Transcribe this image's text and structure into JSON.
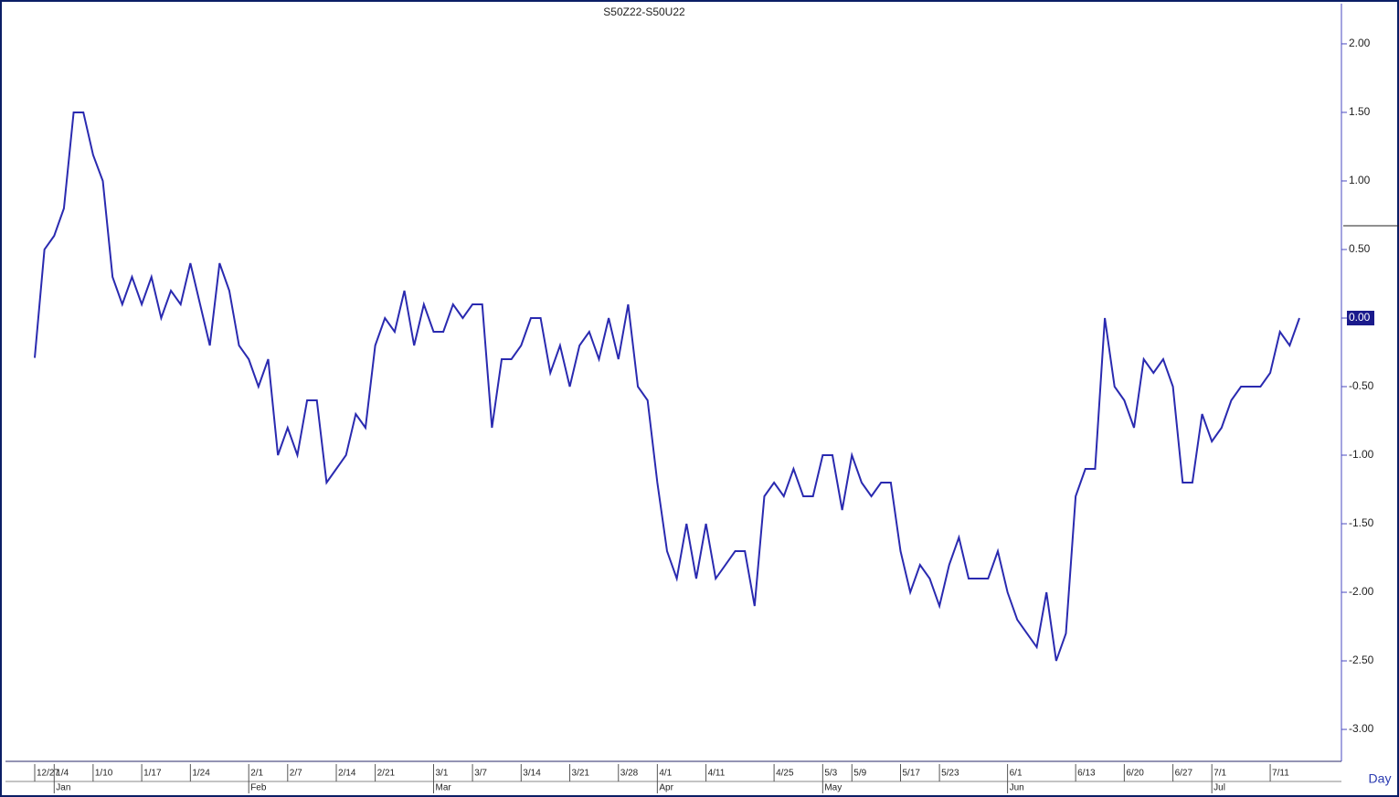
{
  "chart_data": {
    "type": "line",
    "title": "S50Z22-S50U22",
    "period": "Day",
    "categories": [
      "12/27",
      null,
      "1/4",
      null,
      null,
      null,
      "1/10",
      null,
      null,
      null,
      null,
      "1/17",
      null,
      null,
      null,
      null,
      "1/24",
      null,
      null,
      null,
      null,
      null,
      "2/1",
      null,
      null,
      null,
      "2/7",
      null,
      null,
      null,
      null,
      "2/14",
      null,
      null,
      null,
      "2/21",
      null,
      null,
      null,
      null,
      null,
      "3/1",
      null,
      null,
      null,
      "3/7",
      null,
      null,
      null,
      null,
      "3/14",
      null,
      null,
      null,
      null,
      "3/21",
      null,
      null,
      null,
      null,
      "3/28",
      null,
      null,
      null,
      "4/1",
      null,
      null,
      null,
      null,
      "4/11",
      null,
      null,
      null,
      null,
      null,
      null,
      "4/25",
      null,
      null,
      null,
      null,
      "5/3",
      null,
      null,
      "5/9",
      null,
      null,
      null,
      null,
      "5/17",
      null,
      null,
      null,
      "5/23",
      null,
      null,
      null,
      null,
      null,
      null,
      "6/1",
      null,
      null,
      null,
      null,
      null,
      null,
      "6/13",
      null,
      null,
      null,
      null,
      "6/20",
      null,
      null,
      null,
      null,
      "6/27",
      null,
      null,
      null,
      "7/1",
      null,
      null,
      null,
      null,
      null,
      "7/11",
      null,
      null,
      null
    ],
    "months": [
      null,
      null,
      "Jan",
      null,
      null,
      null,
      null,
      null,
      null,
      null,
      null,
      null,
      null,
      null,
      null,
      null,
      null,
      null,
      null,
      null,
      null,
      null,
      "Feb",
      null,
      null,
      null,
      null,
      null,
      null,
      null,
      null,
      null,
      null,
      null,
      null,
      null,
      null,
      null,
      null,
      null,
      null,
      "Mar",
      null,
      null,
      null,
      null,
      null,
      null,
      null,
      null,
      null,
      null,
      null,
      null,
      null,
      null,
      null,
      null,
      null,
      null,
      null,
      null,
      null,
      null,
      "Apr",
      null,
      null,
      null,
      null,
      null,
      null,
      null,
      null,
      null,
      null,
      null,
      null,
      null,
      null,
      null,
      null,
      "May",
      null,
      null,
      null,
      null,
      null,
      null,
      null,
      null,
      null,
      null,
      null,
      null,
      null,
      null,
      null,
      null,
      null,
      null,
      "Jun",
      null,
      null,
      null,
      null,
      null,
      null,
      null,
      null,
      null,
      null,
      null,
      null,
      null,
      null,
      null,
      null,
      null,
      null,
      null,
      null,
      "Jul",
      null,
      null,
      null,
      null,
      null,
      null,
      null,
      null,
      null
    ],
    "series": [
      {
        "name": "S50Z22-S50U22",
        "color": "#2a2ab0",
        "values": [
          -0.29,
          0.5,
          0.6,
          0.8,
          1.5,
          1.5,
          1.19,
          1.0,
          0.3,
          0.1,
          0.3,
          0.1,
          0.3,
          0.0,
          0.2,
          0.1,
          0.4,
          0.1,
          -0.2,
          0.4,
          0.2,
          -0.2,
          -0.3,
          -0.5,
          -0.3,
          -1.0,
          -0.8,
          -1.0,
          -0.6,
          -0.6,
          -1.2,
          -1.1,
          -1.0,
          -0.7,
          -0.8,
          -0.2,
          0.0,
          -0.1,
          0.2,
          -0.2,
          0.1,
          -0.1,
          -0.1,
          0.1,
          0.0,
          0.1,
          0.1,
          -0.8,
          -0.3,
          -0.3,
          -0.2,
          0.0,
          0.0,
          -0.4,
          -0.2,
          -0.5,
          -0.2,
          -0.1,
          -0.3,
          0.0,
          -0.3,
          0.1,
          -0.5,
          -0.6,
          -1.2,
          -1.7,
          -1.9,
          -1.5,
          -1.9,
          -1.5,
          -1.9,
          -1.8,
          -1.7,
          -1.7,
          -2.1,
          -1.3,
          -1.2,
          -1.3,
          -1.1,
          -1.3,
          -1.3,
          -1.0,
          -1.0,
          -1.4,
          -1.0,
          -1.2,
          -1.3,
          -1.2,
          -1.2,
          -1.7,
          -2.0,
          -1.8,
          -1.9,
          -2.1,
          -1.8,
          -1.6,
          -1.9,
          -1.9,
          -1.9,
          -1.7,
          -2.0,
          -2.2,
          -2.3,
          -2.4,
          -2.0,
          -2.5,
          -2.3,
          -1.3,
          -1.1,
          -1.1,
          0.0,
          -0.5,
          -0.6,
          -0.8,
          -0.3,
          -0.4,
          -0.3,
          -0.5,
          -1.2,
          -1.2,
          -0.7,
          -0.9,
          -0.8,
          -0.6,
          -0.5,
          -0.5,
          -0.5,
          -0.4,
          -0.1,
          -0.2,
          0.0
        ]
      }
    ],
    "ylim": [
      -3.233,
      2.293
    ],
    "yticks": [
      {
        "value": 2,
        "label": "2.00"
      },
      {
        "value": 1.5,
        "label": "1.50"
      },
      {
        "value": 1,
        "label": "1.00"
      },
      {
        "value": 0.5,
        "label": "0.50"
      },
      {
        "value": 0,
        "label": "0.00"
      },
      {
        "value": -0.5,
        "label": "-0.50"
      },
      {
        "value": -1,
        "label": "-1.00"
      },
      {
        "value": -1.5,
        "label": "-1.50"
      },
      {
        "value": -2,
        "label": "-2.00"
      },
      {
        "value": -2.5,
        "label": "-2.50"
      },
      {
        "value": -3,
        "label": "-3.00"
      }
    ]
  }
}
